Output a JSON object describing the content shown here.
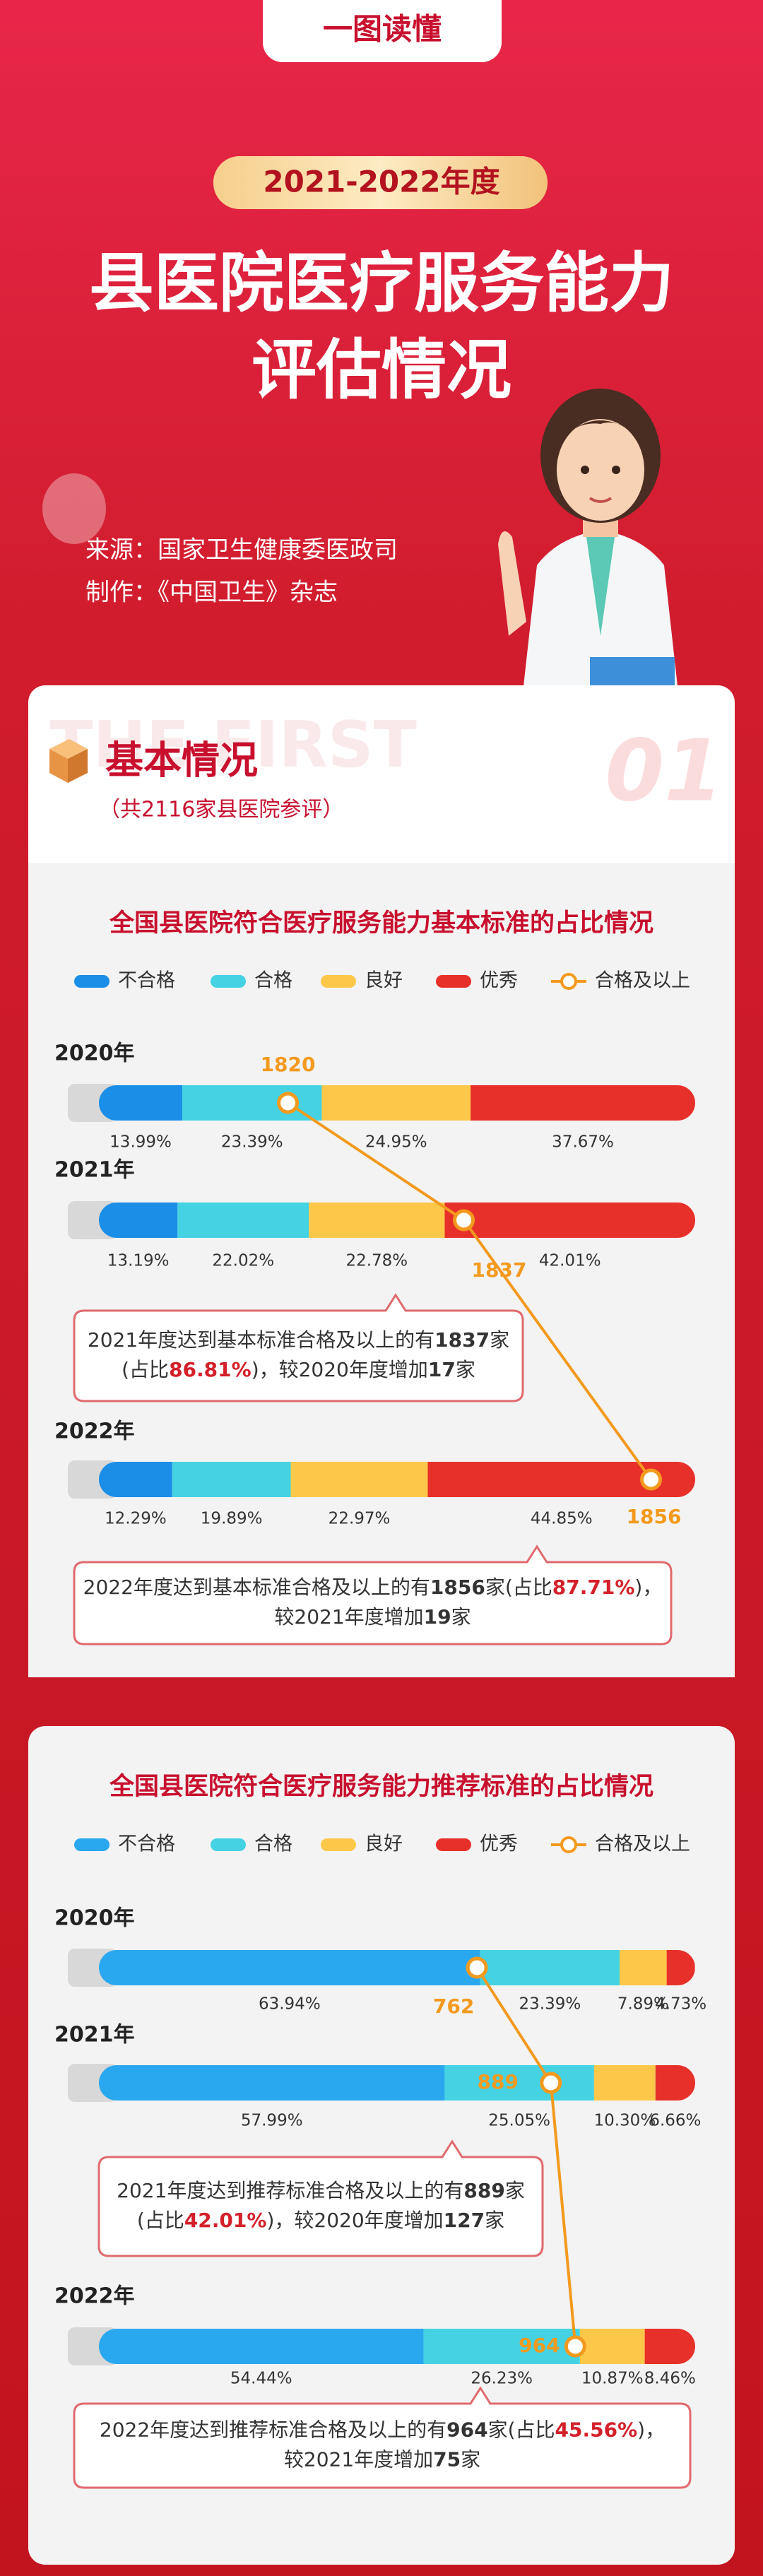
{
  "header": {
    "tag": "一图读懂",
    "period": "2021-2022年度",
    "title_lines": [
      "县医院医疗服务能力",
      "评估情况"
    ],
    "source": "来源：国家卫生健康委医政司",
    "producer": "制作：《中国卫生》杂志"
  },
  "section": {
    "watermark": "THE FIRST",
    "number": "01",
    "title": "基本情况",
    "subtitle": "（共2116家县医院参评）"
  },
  "chart_data": [
    {
      "type": "bar",
      "orientation": "horizontal",
      "stacked": true,
      "title": "全国县医院符合医疗服务能力基本标准的占比情况",
      "categories": [
        "2020年",
        "2021年",
        "2022年"
      ],
      "xlim": [
        0,
        100
      ],
      "series": [
        {
          "name": "不合格",
          "color": "#1b8ee8",
          "values": [
            13.99,
            13.19,
            12.29
          ],
          "value_labels": [
            "13.99%",
            "13.19%",
            "12.29%"
          ]
        },
        {
          "name": "合格",
          "color": "#45d3e3",
          "values": [
            23.39,
            22.02,
            19.89
          ],
          "value_labels": [
            "23.39%",
            "22.02%",
            "19.89%"
          ]
        },
        {
          "name": "良好",
          "color": "#fdc84a",
          "values": [
            24.95,
            22.78,
            22.97
          ],
          "value_labels": [
            "24.95%",
            "22.78%",
            "22.97%"
          ]
        },
        {
          "name": "优秀",
          "color": "#e8302a",
          "values": [
            37.67,
            42.01,
            44.85
          ],
          "value_labels": [
            "37.67%",
            "42.01%",
            "44.85%"
          ]
        }
      ],
      "line": {
        "name": "合格及以上",
        "color": "#f39a1e",
        "values": [
          1820,
          1837,
          1856
        ]
      },
      "annotations": [
        {
          "lines": [
            [
              "2021年度达到基本标准合格及以上的有",
              {
                "text": "1837",
                "weight": "bold"
              },
              "家"
            ],
            [
              "(占比",
              {
                "text": "86.81%",
                "weight": "bold",
                "color": "#d4202a"
              },
              ")，较2020年度增加",
              {
                "text": "17",
                "weight": "bold"
              },
              "家"
            ]
          ]
        },
        {
          "lines": [
            [
              "2022年度达到基本标准合格及以上的有",
              {
                "text": "1856",
                "weight": "bold"
              },
              "家(占比",
              {
                "text": "87.71%",
                "weight": "bold",
                "color": "#d4202a"
              },
              ")，"
            ],
            [
              "较2021年度增加",
              {
                "text": "19",
                "weight": "bold"
              },
              "家"
            ]
          ]
        }
      ]
    },
    {
      "type": "bar",
      "orientation": "horizontal",
      "stacked": true,
      "title": "全国县医院符合医疗服务能力推荐标准的占比情况",
      "categories": [
        "2020年",
        "2021年",
        "2022年"
      ],
      "xlim": [
        0,
        100
      ],
      "series": [
        {
          "name": "不合格",
          "color": "#2aa8ef",
          "values": [
            63.94,
            57.99,
            54.44
          ],
          "value_labels": [
            "63.94%",
            "57.99%",
            "54.44%"
          ]
        },
        {
          "name": "合格",
          "color": "#45d3e3",
          "values": [
            23.39,
            25.05,
            26.23
          ],
          "value_labels": [
            "23.39%",
            "25.05%",
            "26.23%"
          ]
        },
        {
          "name": "良好",
          "color": "#fdc84a",
          "values": [
            7.89,
            10.3,
            10.87
          ],
          "value_labels": [
            "7.89%",
            "10.30%",
            "10.87%"
          ]
        },
        {
          "name": "优秀",
          "color": "#e8302a",
          "values": [
            4.73,
            6.66,
            8.46
          ],
          "value_labels": [
            "4.73%",
            "6.66%",
            "8.46%"
          ]
        }
      ],
      "line": {
        "name": "合格及以上",
        "color": "#f39a1e",
        "values": [
          762,
          889,
          964
        ]
      },
      "annotations": [
        {
          "lines": [
            [
              "2021年度达到推荐标准合格及以上的有",
              {
                "text": "889",
                "weight": "bold"
              },
              "家"
            ],
            [
              "(占比",
              {
                "text": "42.01%",
                "weight": "bold",
                "color": "#d4202a"
              },
              ")，较2020年度增加",
              {
                "text": "127",
                "weight": "bold"
              },
              "家"
            ]
          ]
        },
        {
          "lines": [
            [
              "2022年度达到推荐标准合格及以上的有",
              {
                "text": "964",
                "weight": "bold"
              },
              "家(占比",
              {
                "text": "45.56%",
                "weight": "bold",
                "color": "#d4202a"
              },
              ")，"
            ],
            [
              "较2021年度增加",
              {
                "text": "75",
                "weight": "bold"
              },
              "家"
            ]
          ]
        }
      ]
    }
  ]
}
